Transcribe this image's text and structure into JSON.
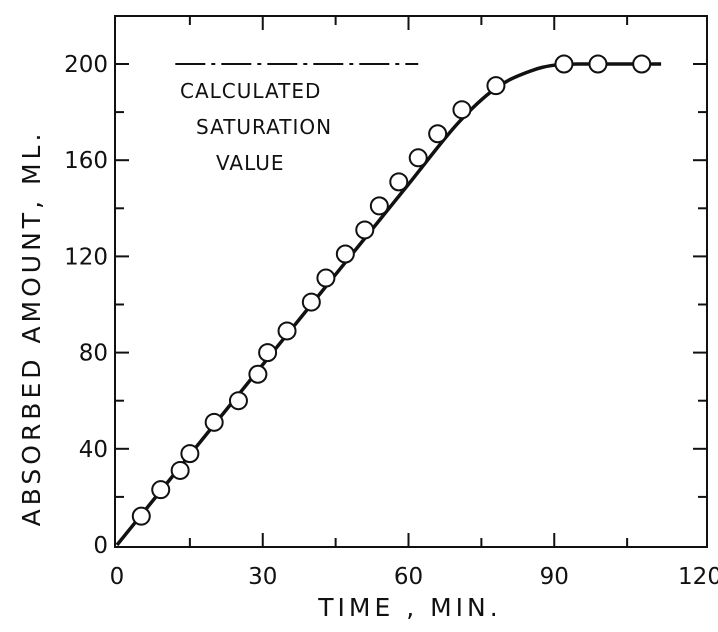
{
  "chart_data": {
    "type": "line",
    "title": "",
    "xlabel": "TIME , MIN.",
    "ylabel": "ABSORBED AMOUNT, ML.",
    "xlim": [
      0,
      120
    ],
    "ylim": [
      0,
      220
    ],
    "xticks": [
      0,
      30,
      60,
      90,
      120
    ],
    "xtick_labels": [
      "0",
      "30",
      "60",
      "90",
      "120"
    ],
    "yticks": [
      0,
      40,
      80,
      120,
      160,
      200
    ],
    "ytick_labels": [
      "0",
      "40",
      "80",
      "120",
      "160",
      "200"
    ],
    "grid": false,
    "series": [
      {
        "style": "open-circle markers",
        "x": [
          5,
          9,
          13,
          15,
          20,
          25,
          29,
          31,
          35,
          40,
          43,
          47,
          51,
          54,
          58,
          62,
          66,
          71,
          78,
          92,
          99,
          108
        ],
        "y": [
          12,
          23,
          31,
          38,
          51,
          60,
          71,
          80,
          89,
          101,
          111,
          121,
          131,
          141,
          151,
          161,
          171,
          181,
          191,
          200,
          200,
          200
        ]
      },
      {
        "style": "solid fitted curve",
        "x": [
          0,
          10,
          20,
          30,
          40,
          50,
          60,
          70,
          78,
          85,
          90,
          95,
          112
        ],
        "y": [
          0,
          25,
          50,
          75,
          100,
          125,
          150,
          175,
          190,
          197,
          199.5,
          200,
          200
        ]
      },
      {
        "style": "dash-dot reference line",
        "label": "CALCULATED SATURATION VALUE",
        "x": [
          12,
          62
        ],
        "y": [
          200,
          200
        ]
      }
    ],
    "annotations": [
      {
        "lines": [
          "CALCULATED",
          "SATURATION",
          "VALUE"
        ]
      }
    ]
  }
}
